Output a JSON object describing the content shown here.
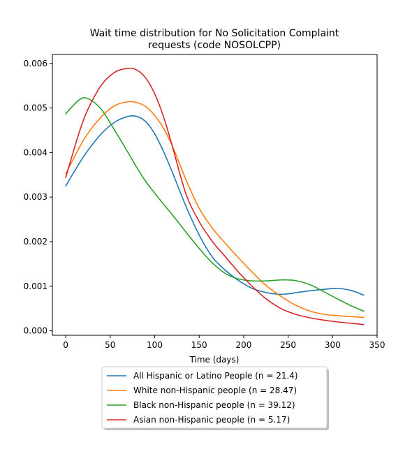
{
  "chart_data": {
    "type": "line",
    "title": "Wait time distribution  for No Solicitation Complaint requests (code NOSOLCPP)",
    "title_lines": [
      "Wait time distribution  for No Solicitation Complaint",
      "requests (code NOSOLCPP)"
    ],
    "xlabel": "Time (days)",
    "ylabel": "",
    "xlim": [
      -15,
      350
    ],
    "ylim": [
      -0.0001,
      0.0062
    ],
    "x_ticks": [
      0,
      50,
      100,
      150,
      200,
      250,
      300,
      350
    ],
    "x_tick_labels": [
      "0",
      "50",
      "100",
      "150",
      "200",
      "250",
      "300",
      "350"
    ],
    "y_ticks": [
      0.0,
      0.001,
      0.002,
      0.003,
      0.004,
      0.005,
      0.006
    ],
    "y_tick_labels": [
      "0.000",
      "0.001",
      "0.002",
      "0.003",
      "0.004",
      "0.005",
      "0.006"
    ],
    "grid": false,
    "legend_position": "below plot, centered",
    "x": [
      0,
      15,
      25,
      40,
      55,
      70,
      80,
      90,
      100,
      110,
      120,
      135,
      150,
      165,
      180,
      195,
      210,
      225,
      240,
      250,
      260,
      275,
      290,
      305,
      320,
      335
    ],
    "series": [
      {
        "name": "All Hispanic or Latino People (n = 21.4)",
        "color": "#1f77b4",
        "values": [
          0.00325,
          0.00375,
          0.00405,
          0.00442,
          0.00468,
          0.00481,
          0.00481,
          0.00469,
          0.00442,
          0.00402,
          0.00355,
          0.0028,
          0.00215,
          0.00165,
          0.00135,
          0.00112,
          0.00095,
          0.00086,
          0.00082,
          0.00083,
          0.00086,
          0.0009,
          0.00093,
          0.00095,
          0.00091,
          0.0008
        ]
      },
      {
        "name": "White non-Hispanic people (n = 28.47)",
        "color": "#ff7f0e",
        "values": [
          0.00352,
          0.0041,
          0.00443,
          0.0048,
          0.00505,
          0.00514,
          0.00512,
          0.00503,
          0.00483,
          0.00454,
          0.00414,
          0.0034,
          0.00275,
          0.0023,
          0.00195,
          0.00162,
          0.00131,
          0.00102,
          0.0008,
          0.00067,
          0.00056,
          0.00044,
          0.00037,
          0.00034,
          0.00032,
          0.0003
        ]
      },
      {
        "name": "Black non-Hispanic people (n = 39.12)",
        "color": "#2ca02c",
        "values": [
          0.00487,
          0.00518,
          0.00521,
          0.00497,
          0.0045,
          0.004,
          0.00366,
          0.00335,
          0.00309,
          0.00284,
          0.0026,
          0.00222,
          0.00185,
          0.00152,
          0.00128,
          0.00116,
          0.00112,
          0.00112,
          0.00114,
          0.00114,
          0.00112,
          0.00103,
          0.00088,
          0.00072,
          0.00057,
          0.00044
        ]
      },
      {
        "name": "Asian non-Hispanic people (n = 5.17)",
        "color": "#d62728",
        "values": [
          0.00344,
          0.00444,
          0.00497,
          0.00551,
          0.0058,
          0.00589,
          0.00585,
          0.00567,
          0.00532,
          0.0048,
          0.00413,
          0.00308,
          0.00245,
          0.002,
          0.00165,
          0.0013,
          0.00099,
          0.00072,
          0.00052,
          0.00043,
          0.00036,
          0.00029,
          0.00024,
          0.0002,
          0.00017,
          0.00014
        ]
      }
    ]
  }
}
